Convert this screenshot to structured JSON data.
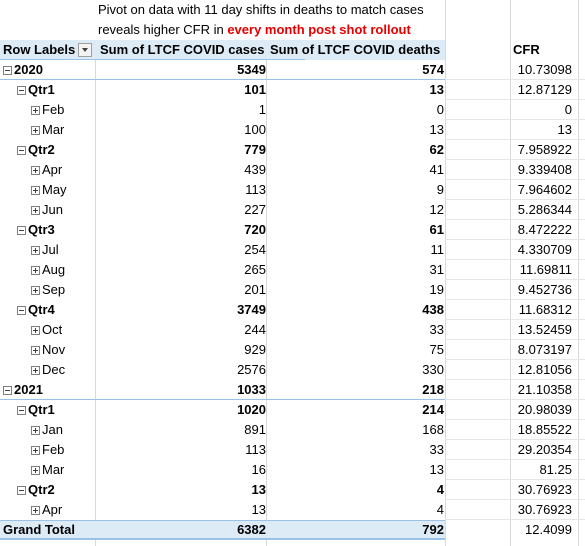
{
  "title_lines": {
    "line1": "Pivot on data with 11 day shifts in deaths to match cases",
    "line2_prefix": "reveals higher CFR in ",
    "line2_highlight": "every month post shot rollout"
  },
  "colors": {
    "header_fill": "#ddebf7",
    "accent_border": "#9bc2e6",
    "highlight_red": "#e60000",
    "gridline": "#d9d9d9"
  },
  "headers": {
    "row_labels": "Row Labels",
    "cases": "Sum of LTCF COVID cases",
    "deaths": "Sum of LTCF COVID deaths",
    "cfr": "CFR"
  },
  "rows": [
    {
      "level": 0,
      "toggle": "minus",
      "label": "2020",
      "cases": "5349",
      "deaths": "574",
      "cfr": "10.73098",
      "bold": true
    },
    {
      "level": 1,
      "toggle": "minus",
      "label": "Qtr1",
      "cases": "101",
      "deaths": "13",
      "cfr": "12.87129",
      "bold": true
    },
    {
      "level": 2,
      "toggle": "plus",
      "label": "Feb",
      "cases": "1",
      "deaths": "0",
      "cfr": "0",
      "bold": false
    },
    {
      "level": 2,
      "toggle": "plus",
      "label": "Mar",
      "cases": "100",
      "deaths": "13",
      "cfr": "13",
      "bold": false
    },
    {
      "level": 1,
      "toggle": "minus",
      "label": "Qtr2",
      "cases": "779",
      "deaths": "62",
      "cfr": "7.958922",
      "bold": true
    },
    {
      "level": 2,
      "toggle": "plus",
      "label": "Apr",
      "cases": "439",
      "deaths": "41",
      "cfr": "9.339408",
      "bold": false
    },
    {
      "level": 2,
      "toggle": "plus",
      "label": "May",
      "cases": "113",
      "deaths": "9",
      "cfr": "7.964602",
      "bold": false
    },
    {
      "level": 2,
      "toggle": "plus",
      "label": "Jun",
      "cases": "227",
      "deaths": "12",
      "cfr": "5.286344",
      "bold": false
    },
    {
      "level": 1,
      "toggle": "minus",
      "label": "Qtr3",
      "cases": "720",
      "deaths": "61",
      "cfr": "8.472222",
      "bold": true
    },
    {
      "level": 2,
      "toggle": "plus",
      "label": "Jul",
      "cases": "254",
      "deaths": "11",
      "cfr": "4.330709",
      "bold": false
    },
    {
      "level": 2,
      "toggle": "plus",
      "label": "Aug",
      "cases": "265",
      "deaths": "31",
      "cfr": "11.69811",
      "bold": false
    },
    {
      "level": 2,
      "toggle": "plus",
      "label": "Sep",
      "cases": "201",
      "deaths": "19",
      "cfr": "9.452736",
      "bold": false
    },
    {
      "level": 1,
      "toggle": "minus",
      "label": "Qtr4",
      "cases": "3749",
      "deaths": "438",
      "cfr": "11.68312",
      "bold": true
    },
    {
      "level": 2,
      "toggle": "plus",
      "label": "Oct",
      "cases": "244",
      "deaths": "33",
      "cfr": "13.52459",
      "bold": false
    },
    {
      "level": 2,
      "toggle": "plus",
      "label": "Nov",
      "cases": "929",
      "deaths": "75",
      "cfr": "8.073197",
      "bold": false
    },
    {
      "level": 2,
      "toggle": "plus",
      "label": "Dec",
      "cases": "2576",
      "deaths": "330",
      "cfr": "12.81056",
      "bold": false
    },
    {
      "level": 0,
      "toggle": "minus",
      "label": "2021",
      "cases": "1033",
      "deaths": "218",
      "cfr": "21.10358",
      "bold": true
    },
    {
      "level": 1,
      "toggle": "minus",
      "label": "Qtr1",
      "cases": "1020",
      "deaths": "214",
      "cfr": "20.98039",
      "bold": true
    },
    {
      "level": 2,
      "toggle": "plus",
      "label": "Jan",
      "cases": "891",
      "deaths": "168",
      "cfr": "18.85522",
      "bold": false
    },
    {
      "level": 2,
      "toggle": "plus",
      "label": "Feb",
      "cases": "113",
      "deaths": "33",
      "cfr": "29.20354",
      "bold": false
    },
    {
      "level": 2,
      "toggle": "plus",
      "label": "Mar",
      "cases": "16",
      "deaths": "13",
      "cfr": "81.25",
      "bold": false
    },
    {
      "level": 1,
      "toggle": "minus",
      "label": "Qtr2",
      "cases": "13",
      "deaths": "4",
      "cfr": "30.76923",
      "bold": true
    },
    {
      "level": 2,
      "toggle": "plus",
      "label": "Apr",
      "cases": "13",
      "deaths": "4",
      "cfr": "30.76923",
      "bold": false
    }
  ],
  "grand_total": {
    "label": "Grand Total",
    "cases": "6382",
    "deaths": "792",
    "cfr": "12.4099"
  }
}
